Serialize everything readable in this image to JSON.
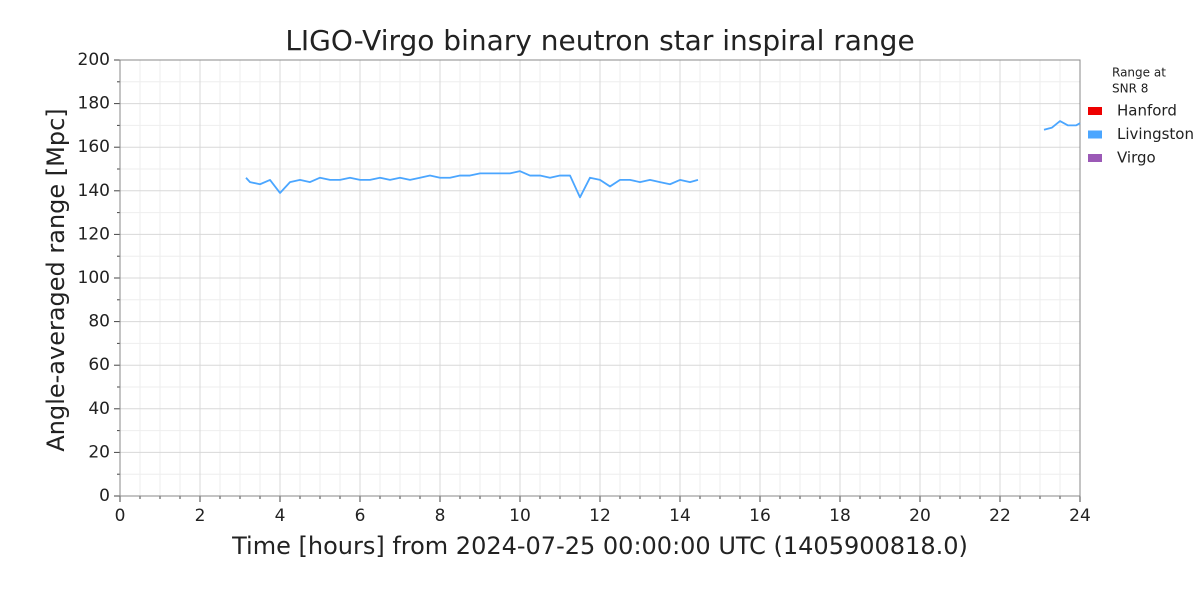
{
  "chart_data": {
    "type": "line",
    "title": "LIGO-Virgo binary neutron star inspiral range",
    "xlabel": "Time [hours] from 2024-07-25 00:00:00 UTC (1405900818.0)",
    "ylabel": "Angle-averaged range [Mpc]",
    "legend_title": [
      "Range at",
      "SNR 8"
    ],
    "legend_position": "outside-right",
    "grid": true,
    "x": [
      3.15,
      3.25,
      3.5,
      3.75,
      4.0,
      4.25,
      4.5,
      4.75,
      5.0,
      5.25,
      5.5,
      5.75,
      6.0,
      6.25,
      6.5,
      6.75,
      7.0,
      7.25,
      7.5,
      7.75,
      8.0,
      8.25,
      8.5,
      8.75,
      9.0,
      9.25,
      9.5,
      9.75,
      10.0,
      10.25,
      10.5,
      10.75,
      11.0,
      11.25,
      11.5,
      11.75,
      12.0,
      12.25,
      12.5,
      12.75,
      13.0,
      13.25,
      13.5,
      13.75,
      14.0,
      14.25,
      14.45,
      18,
      23.1,
      23.3,
      23.5,
      23.7,
      23.9,
      24
    ],
    "series": [
      {
        "name": "Hanford",
        "color": "#ee0000",
        "values": [
          null,
          null,
          null,
          null,
          null,
          null,
          null,
          null,
          null,
          null,
          null,
          null,
          null,
          null,
          null,
          null,
          null,
          null,
          null,
          null,
          null,
          null,
          null,
          null,
          null,
          null,
          null,
          null,
          null,
          null,
          null,
          null,
          null,
          null,
          null,
          null,
          null,
          null,
          null,
          null,
          null,
          null,
          null,
          null,
          null,
          null,
          null,
          null,
          null,
          null,
          null,
          null,
          null,
          null
        ]
      },
      {
        "name": "Livingston",
        "color": "#4ba6ff",
        "values": [
          146,
          144,
          143,
          145,
          139,
          144,
          145,
          144,
          146,
          145,
          145,
          146,
          145,
          145,
          146,
          145,
          146,
          145,
          146,
          147,
          146,
          146,
          147,
          147,
          148,
          148,
          148,
          148,
          149,
          147,
          147,
          146,
          147,
          147,
          137,
          146,
          145,
          142,
          145,
          145,
          144,
          145,
          144,
          143,
          145,
          144,
          145,
          null,
          168,
          169,
          172,
          170,
          170,
          171
        ]
      },
      {
        "name": "Virgo",
        "color": "#9b59b6",
        "values": [
          null,
          null,
          null,
          null,
          null,
          null,
          null,
          null,
          null,
          null,
          null,
          null,
          null,
          null,
          null,
          null,
          null,
          null,
          null,
          null,
          null,
          null,
          null,
          null,
          null,
          null,
          null,
          null,
          null,
          null,
          null,
          null,
          null,
          null,
          null,
          null,
          null,
          null,
          null,
          null,
          null,
          null,
          null,
          null,
          null,
          null,
          null,
          null,
          null,
          null,
          null,
          null,
          null,
          null
        ]
      }
    ],
    "xlim": [
      0,
      24
    ],
    "xticks": [
      0,
      2,
      4,
      6,
      8,
      10,
      12,
      14,
      16,
      18,
      20,
      22,
      24
    ],
    "ylim": [
      0,
      200
    ],
    "yticks": [
      0,
      20,
      40,
      60,
      80,
      100,
      120,
      140,
      160,
      180,
      200
    ]
  }
}
